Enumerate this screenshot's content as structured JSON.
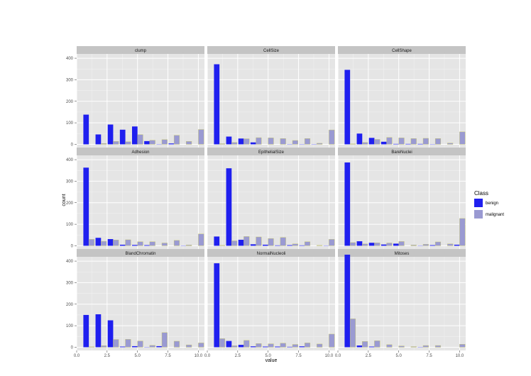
{
  "chart_data": {
    "type": "bar",
    "layout": "facet-grid 3x3",
    "xlabel": "value",
    "ylabel": "count",
    "xlim": [
      0,
      10.5
    ],
    "ylim": [
      0,
      400
    ],
    "x_ticks": [
      "0.0",
      "2.5",
      "5.0",
      "7.5",
      "10.0"
    ],
    "y_ticks": [
      "0",
      "100",
      "200",
      "300",
      "400"
    ],
    "legend": {
      "title": "Class",
      "position": "right",
      "entries": [
        {
          "name": "benign",
          "color": "#1f1fef"
        },
        {
          "name": "malignant",
          "color": "#9a9ad2"
        }
      ]
    },
    "colors": {
      "benign": "#1f1fef",
      "malignant": "#9a9ad2",
      "panel_bg": "#e5e5e5",
      "strip_bg": "#c4c4c4"
    },
    "x": [
      1,
      2,
      3,
      4,
      5,
      6,
      7,
      8,
      9,
      10
    ],
    "panels": [
      {
        "title": "clump",
        "benign": [
          138,
          46,
          92,
          68,
          83,
          15,
          1,
          4,
          0,
          0
        ],
        "malignant": [
          0,
          4,
          14,
          12,
          45,
          19,
          22,
          42,
          14,
          69
        ]
      },
      {
        "title": "CellSize",
        "benign": [
          372,
          36,
          27,
          9,
          0,
          0,
          1,
          1,
          1,
          0
        ],
        "malignant": [
          3,
          9,
          26,
          31,
          30,
          27,
          18,
          27,
          5,
          67
        ]
      },
      {
        "title": "CellShape",
        "benign": [
          346,
          50,
          30,
          12,
          2,
          2,
          2,
          1,
          0,
          0
        ],
        "malignant": [
          2,
          9,
          23,
          32,
          30,
          27,
          28,
          27,
          6,
          58
        ]
      },
      {
        "title": "Adhesion",
        "benign": [
          363,
          37,
          31,
          5,
          4,
          3,
          0,
          0,
          1,
          0
        ],
        "malignant": [
          30,
          21,
          27,
          28,
          19,
          19,
          13,
          25,
          4,
          55
        ]
      },
      {
        "title": "EpithelialSize",
        "benign": [
          43,
          360,
          28,
          7,
          5,
          2,
          3,
          2,
          0,
          1
        ],
        "malignant": [
          2,
          23,
          43,
          41,
          34,
          39,
          9,
          19,
          2,
          30
        ]
      },
      {
        "title": "BareNuclei",
        "benign": [
          387,
          21,
          14,
          6,
          10,
          0,
          1,
          3,
          0,
          5
        ],
        "malignant": [
          15,
          9,
          14,
          13,
          20,
          4,
          7,
          18,
          9,
          127
        ]
      },
      {
        "title": "BlandChromatin",
        "benign": [
          150,
          153,
          125,
          3,
          5,
          1,
          5,
          0,
          0,
          0
        ],
        "malignant": [
          2,
          7,
          36,
          37,
          29,
          9,
          68,
          28,
          11,
          20
        ]
      },
      {
        "title": "NormalNucleoli",
        "benign": [
          390,
          29,
          11,
          4,
          3,
          3,
          2,
          4,
          0,
          0
        ],
        "malignant": [
          40,
          7,
          32,
          17,
          16,
          19,
          13,
          20,
          15,
          61
        ]
      },
      {
        "title": "Mitoses",
        "benign": [
          430,
          8,
          3,
          0,
          0,
          0,
          1,
          0,
          0,
          0
        ],
        "malignant": [
          132,
          27,
          30,
          12,
          6,
          3,
          8,
          8,
          0,
          14
        ]
      }
    ]
  }
}
